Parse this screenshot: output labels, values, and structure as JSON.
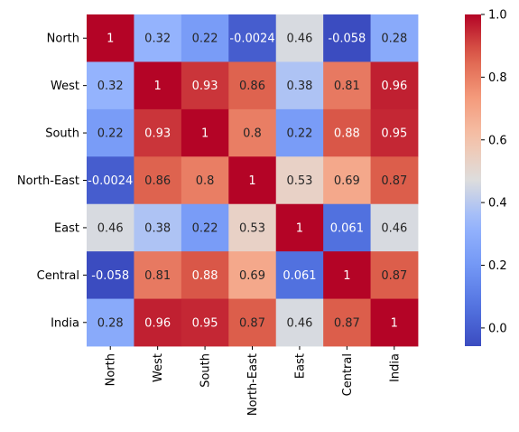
{
  "chart_data": {
    "type": "heatmap",
    "title": "",
    "xlabel": "",
    "ylabel": "",
    "rows": [
      "North",
      "West",
      "South",
      "North-East",
      "East",
      "Central",
      "India"
    ],
    "columns": [
      "North",
      "West",
      "South",
      "North-East",
      "East",
      "Central",
      "India"
    ],
    "values": [
      [
        1,
        0.32,
        0.22,
        -0.0024,
        0.46,
        -0.058,
        0.28
      ],
      [
        0.32,
        1,
        0.93,
        0.86,
        0.38,
        0.81,
        0.96
      ],
      [
        0.22,
        0.93,
        1,
        0.8,
        0.22,
        0.88,
        0.95
      ],
      [
        -0.0024,
        0.86,
        0.8,
        1,
        0.53,
        0.69,
        0.87
      ],
      [
        0.46,
        0.38,
        0.22,
        0.53,
        1,
        0.061,
        0.46
      ],
      [
        -0.058,
        0.81,
        0.88,
        0.69,
        0.061,
        1,
        0.87
      ],
      [
        0.28,
        0.96,
        0.95,
        0.87,
        0.46,
        0.87,
        1
      ]
    ],
    "value_labels": [
      [
        "1",
        "0.32",
        "0.22",
        "-0.0024",
        "0.46",
        "-0.058",
        "0.28"
      ],
      [
        "0.32",
        "1",
        "0.93",
        "0.86",
        "0.38",
        "0.81",
        "0.96"
      ],
      [
        "0.22",
        "0.93",
        "1",
        "0.8",
        "0.22",
        "0.88",
        "0.95"
      ],
      [
        "-0.0024",
        "0.86",
        "0.8",
        "1",
        "0.53",
        "0.69",
        "0.87"
      ],
      [
        "0.46",
        "0.38",
        "0.22",
        "0.53",
        "1",
        "0.061",
        "0.46"
      ],
      [
        "-0.058",
        "0.81",
        "0.88",
        "0.69",
        "0.061",
        "1",
        "0.87"
      ],
      [
        "0.28",
        "0.96",
        "0.95",
        "0.87",
        "0.46",
        "0.87",
        "1"
      ]
    ],
    "colormap": "coolwarm",
    "color_range": [
      -0.058,
      1
    ],
    "colorbar": {
      "ticks": [
        0.0,
        0.2,
        0.4,
        0.6,
        0.8,
        1.0
      ],
      "tick_labels": [
        "0.0",
        "0.2",
        "0.4",
        "0.6",
        "0.8",
        "1.0"
      ],
      "placement": "right"
    },
    "x_tick_rotation": "vertical",
    "grid": false
  }
}
